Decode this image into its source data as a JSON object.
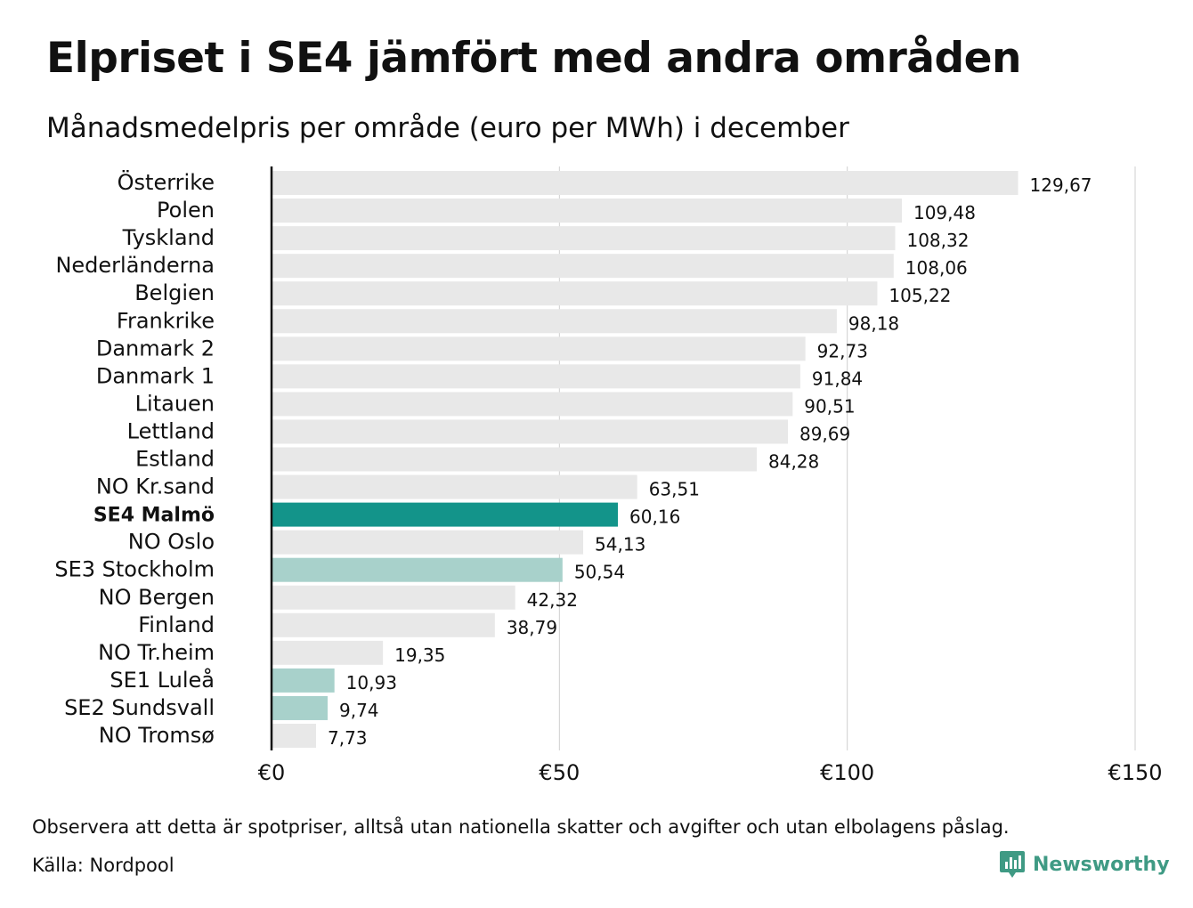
{
  "header": {
    "title": "Elpriset i SE4 jämfört med andra områden",
    "subtitle": "Månadsmedelpris per område (euro per MWh) i december"
  },
  "footer": {
    "note": "Observera att detta är spotpriser, alltså utan nationella skatter och avgifter och utan elbolagens påslag.",
    "source": "Källa: Nordpool",
    "logo_text": "Newsworthy"
  },
  "colors": {
    "default_bar": "#e8e8e8",
    "highlight_bar": "#13948a",
    "secondary_bar": "#a8d1cb",
    "gridline": "#cfcfcf",
    "axis": "#111111"
  },
  "chart_data": {
    "type": "bar",
    "orientation": "horizontal",
    "title": "Elpriset i SE4 jämfört med andra områden",
    "subtitle": "Månadsmedelpris per område (euro per MWh) i december",
    "categories": [
      "Österrike",
      "Polen",
      "Tyskland",
      "Nederländerna",
      "Belgien",
      "Frankrike",
      "Danmark  2",
      "Danmark  1",
      "Litauen",
      "Lettland",
      "Estland",
      "NO Kr.sand",
      "SE4 Malmö",
      "NO Oslo",
      "SE3  Stockholm",
      "NO Bergen",
      "Finland",
      "NO Tr.heim",
      "SE1  Luleå",
      "SE2  Sundsvall",
      "NO Tromsø"
    ],
    "values": [
      129.67,
      109.48,
      108.32,
      108.06,
      105.22,
      98.18,
      92.73,
      91.84,
      90.51,
      89.69,
      84.28,
      63.51,
      60.16,
      54.13,
      50.54,
      42.32,
      38.79,
      19.35,
      10.93,
      9.74,
      7.73
    ],
    "value_labels": [
      "129,67",
      "109,48",
      "108,32",
      "108,06",
      "105,22",
      "98,18",
      "92,73",
      "91,84",
      "90,51",
      "89,69",
      "84,28",
      "63,51",
      "60,16",
      "54,13",
      "50,54",
      "42,32",
      "38,79",
      "19,35",
      "10,93",
      "9,74",
      "7,73"
    ],
    "bar_style": [
      "default",
      "default",
      "default",
      "default",
      "default",
      "default",
      "default",
      "default",
      "default",
      "default",
      "default",
      "default",
      "highlight",
      "default",
      "secondary",
      "default",
      "default",
      "default",
      "secondary",
      "secondary",
      "default"
    ],
    "bold_categories": [
      "SE4 Malmö"
    ],
    "xlim": [
      0,
      150
    ],
    "xticks": [
      0,
      50,
      100,
      150
    ],
    "xtick_labels": [
      "€0",
      "€50",
      "€100",
      "€150"
    ],
    "xlabel": "",
    "ylabel": "",
    "grid": true,
    "legend": "none"
  }
}
